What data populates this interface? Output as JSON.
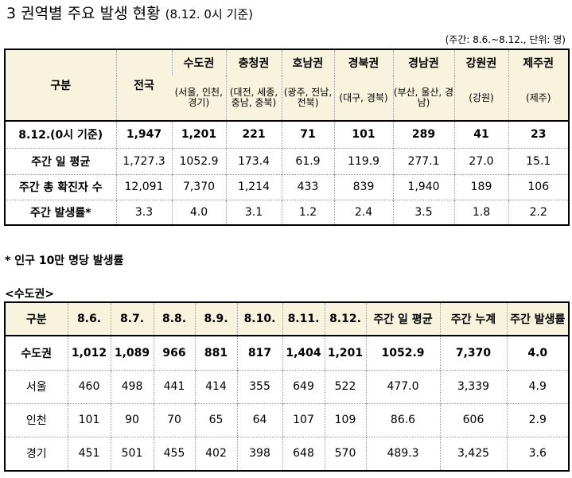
{
  "title": "3 권역별 주요 발생 현황",
  "title_sub": "(8.12. 0시 기준)",
  "unit_note": "(주간: 8.6.~8.12., 단위: 명)",
  "table1": {
    "corner": "구분",
    "national": "전국",
    "regions": [
      {
        "name": "수도권",
        "sub": "(서울, 인천, 경기)"
      },
      {
        "name": "충청권",
        "sub": "(대전, 세종, 충남, 충북)"
      },
      {
        "name": "호남권",
        "sub": "(광주, 전남, 전북)"
      },
      {
        "name": "경북권",
        "sub": "(대구, 경북)"
      },
      {
        "name": "경남권",
        "sub": "(부산, 울산, 경남)"
      },
      {
        "name": "강원권",
        "sub": "(강원)"
      },
      {
        "name": "제주권",
        "sub": "(제주)"
      }
    ],
    "rows": [
      {
        "label": "8.12.(0시 기준)",
        "values": [
          "1,947",
          "1,201",
          "221",
          "71",
          "101",
          "289",
          "41",
          "23"
        ]
      },
      {
        "label": "주간 일 평균",
        "values": [
          "1,727.3",
          "1052.9",
          "173.4",
          "61.9",
          "119.9",
          "277.1",
          "27.0",
          "15.1"
        ]
      },
      {
        "label": "주간 총 확진자 수",
        "values": [
          "12,091",
          "7,370",
          "1,214",
          "433",
          "839",
          "1,940",
          "189",
          "106"
        ]
      },
      {
        "label": "주간 발생률*",
        "values": [
          "3.3",
          "4.0",
          "3.1",
          "1.2",
          "2.4",
          "3.5",
          "1.8",
          "2.2"
        ]
      }
    ]
  },
  "footnote": "* 인구 10만 명당 발생률",
  "section_label": "<수도권>",
  "table2": {
    "headers": [
      "구분",
      "8.6.",
      "8.7.",
      "8.8.",
      "8.9.",
      "8.10.",
      "8.11.",
      "8.12.",
      "주간 일 평균",
      "주간 누계",
      "주간 발생률"
    ],
    "rows": [
      {
        "label": "수도권",
        "values": [
          "1,012",
          "1,089",
          "966",
          "881",
          "817",
          "1,404",
          "1,201",
          "1052.9",
          "7,370",
          "4.0"
        ]
      },
      {
        "label": "서울",
        "values": [
          "460",
          "498",
          "441",
          "414",
          "355",
          "649",
          "522",
          "477.0",
          "3,339",
          "4.9"
        ]
      },
      {
        "label": "인천",
        "values": [
          "101",
          "90",
          "70",
          "65",
          "64",
          "107",
          "109",
          "86.6",
          "606",
          "2.9"
        ]
      },
      {
        "label": "경기",
        "values": [
          "451",
          "501",
          "455",
          "402",
          "398",
          "648",
          "570",
          "489.3",
          "3,425",
          "3.6"
        ]
      }
    ]
  }
}
